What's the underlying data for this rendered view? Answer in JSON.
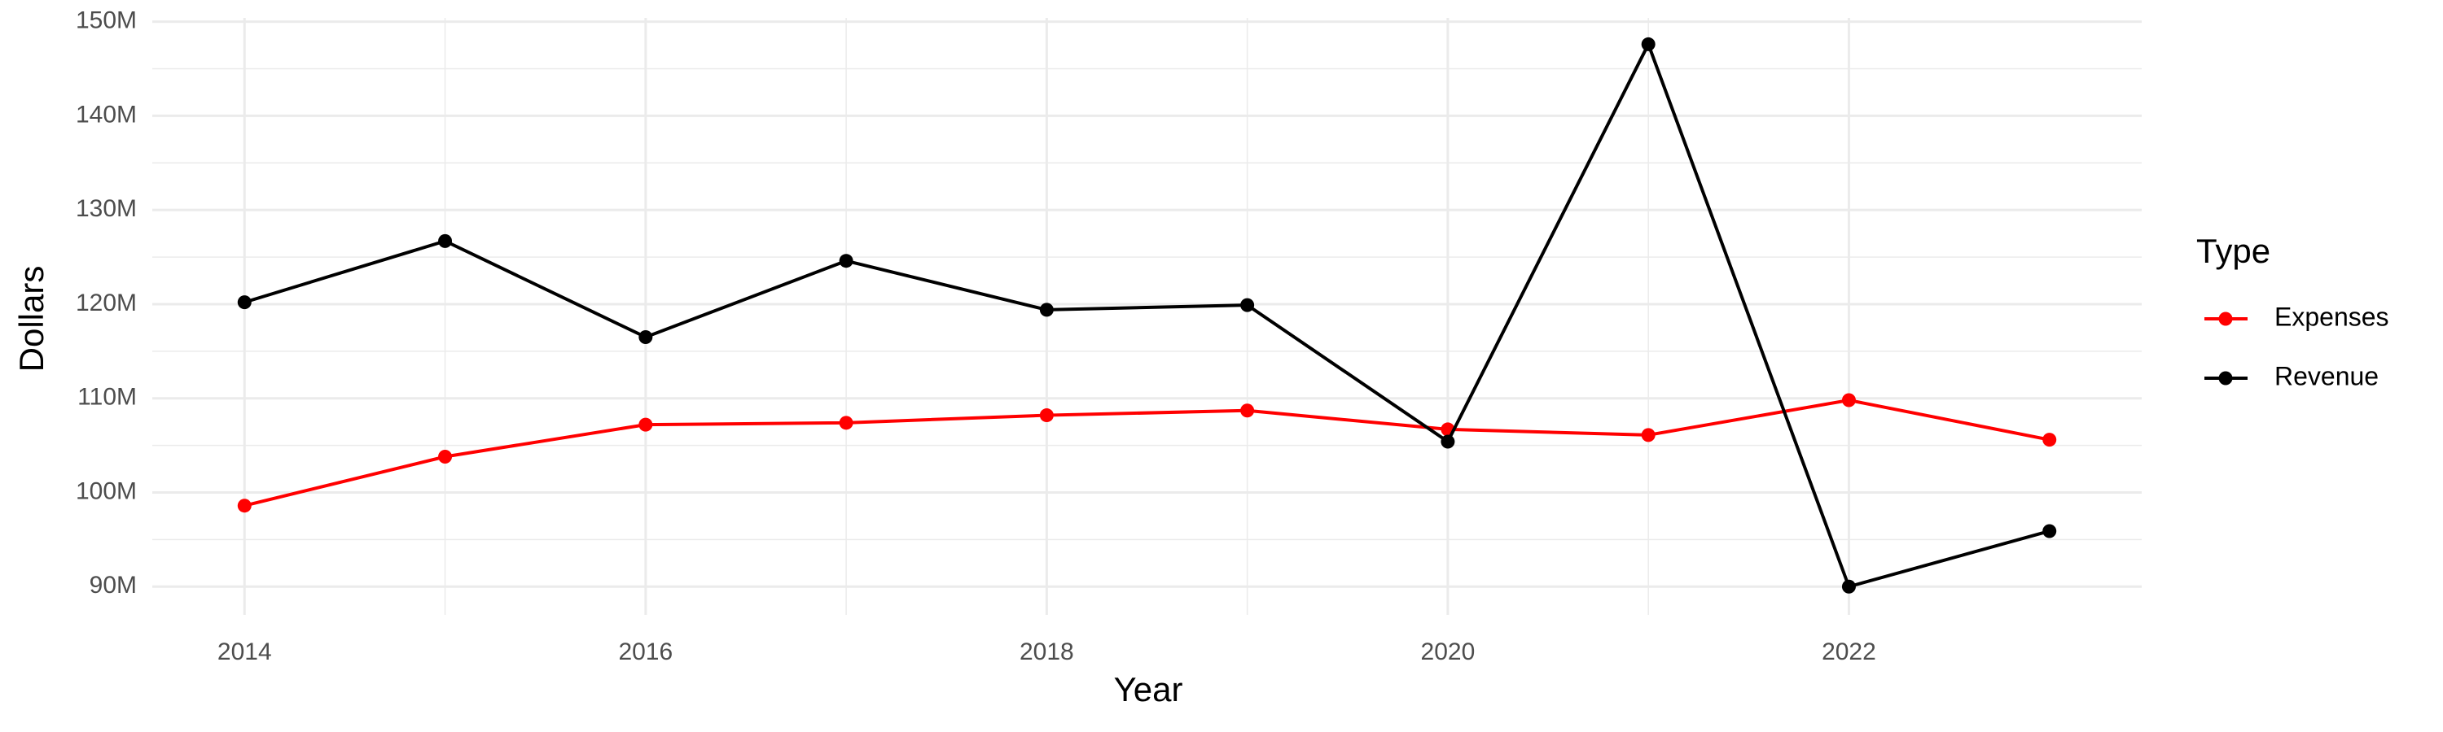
{
  "chart_data": {
    "type": "line",
    "x_label": "Year",
    "y_label": "Dollars",
    "legend_title": "Type",
    "x": [
      2014,
      2015,
      2016,
      2017,
      2018,
      2019,
      2020,
      2021,
      2022,
      2023
    ],
    "series": [
      {
        "name": "Expenses",
        "color": "#ff0000",
        "values": [
          98600000,
          103800000,
          107200000,
          107400000,
          108200000,
          108700000,
          106700000,
          106100000,
          109800000,
          105600000
        ]
      },
      {
        "name": "Revenue",
        "color": "#000000",
        "values": [
          120200000,
          126700000,
          116500000,
          124600000,
          119400000,
          119900000,
          105400000,
          147600000,
          90000000,
          95900000
        ]
      }
    ],
    "xlim": [
      2013.54,
      2023.46
    ],
    "xticks": [
      2014,
      2016,
      2018,
      2020,
      2022
    ],
    "ylim": [
      87000000,
      150400000
    ],
    "yticks": [
      {
        "value": 90000000,
        "label": "90M"
      },
      {
        "value": 100000000,
        "label": "100M"
      },
      {
        "value": 110000000,
        "label": "110M"
      },
      {
        "value": 120000000,
        "label": "120M"
      },
      {
        "value": 130000000,
        "label": "130M"
      },
      {
        "value": 140000000,
        "label": "140M"
      },
      {
        "value": 150000000,
        "label": "150M"
      }
    ],
    "grid": true,
    "minor_grid": true,
    "legend_position": "right"
  }
}
